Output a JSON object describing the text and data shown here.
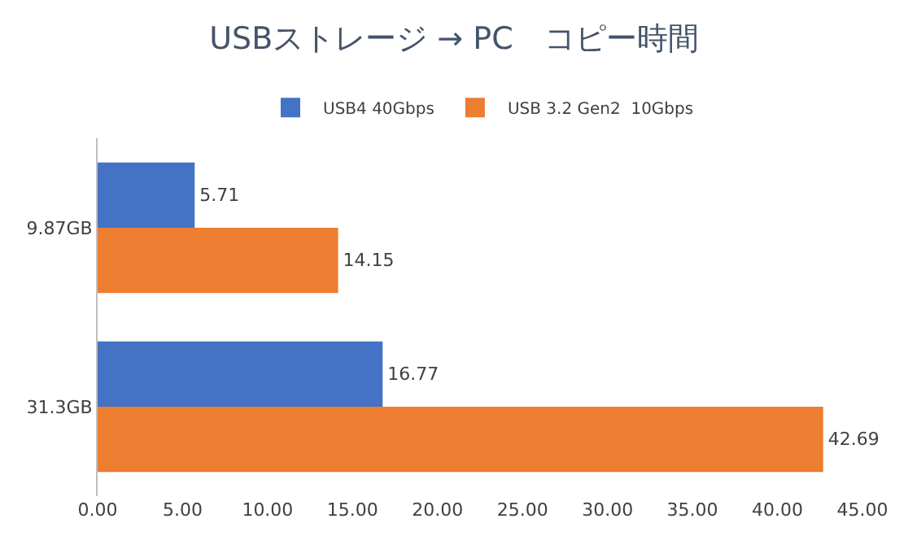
{
  "chart_data": {
    "type": "bar",
    "orientation": "horizontal",
    "title": "USBストレージ → PC　コピー時間",
    "categories": [
      "9.87GB",
      "31.3GB"
    ],
    "series": [
      {
        "name": "USB4 40Gbps",
        "color": "#4472c4",
        "values": [
          5.71,
          16.77
        ]
      },
      {
        "name": "USB 3.2 Gen2  10Gbps",
        "color": "#ed7d31",
        "values": [
          14.15,
          42.69
        ]
      }
    ],
    "xlim": [
      0,
      45
    ],
    "xticks": [
      {
        "value": 0,
        "label": "0.00"
      },
      {
        "value": 5,
        "label": "5.00"
      },
      {
        "value": 10,
        "label": "10.00"
      },
      {
        "value": 15,
        "label": "15.00"
      },
      {
        "value": 20,
        "label": "20.00"
      },
      {
        "value": 25,
        "label": "25.00"
      },
      {
        "value": 30,
        "label": "30.00"
      },
      {
        "value": 35,
        "label": "35.00"
      },
      {
        "value": 40,
        "label": "40.00"
      },
      {
        "value": 45,
        "label": "45.00"
      }
    ],
    "data_labels": true,
    "legend": "top",
    "grid": false
  }
}
